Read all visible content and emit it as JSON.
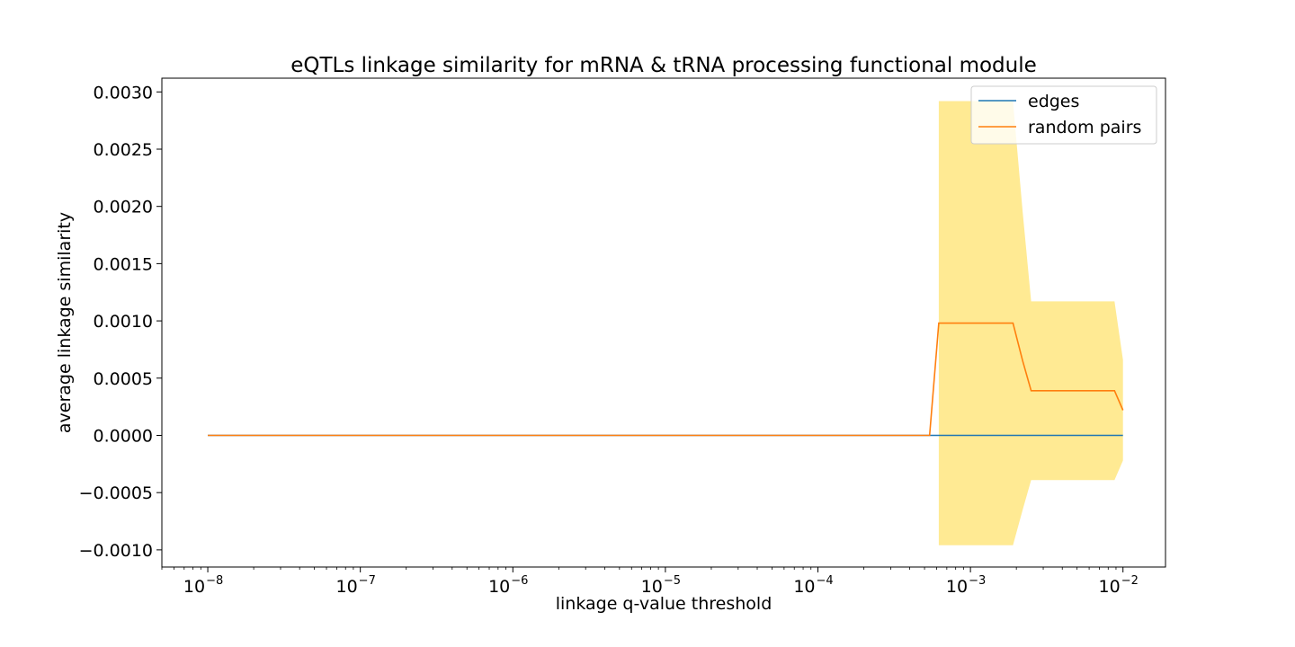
{
  "chart_data": {
    "type": "line",
    "title": "eQTLs linkage similarity for mRNA & tRNA processing functional module",
    "xlabel": "linkage q-value threshold",
    "ylabel": "average linkage similarity",
    "xscale": "log",
    "xlim": [
      5e-09,
      0.019
    ],
    "ylim": [
      -0.00115,
      0.00312
    ],
    "xtick_exponents": [
      -8,
      -7,
      -6,
      -5,
      -4,
      -3,
      -2
    ],
    "yticks": [
      -0.001,
      -0.0005,
      0.0,
      0.0005,
      0.001,
      0.0015,
      0.002,
      0.0025,
      0.003
    ],
    "ytick_labels": [
      "−0.0010",
      "−0.0005",
      "0.0000",
      "0.0005",
      "0.0010",
      "0.0015",
      "0.0020",
      "0.0025",
      "0.0030"
    ],
    "grid": false,
    "legend_position": "top-right",
    "series": [
      {
        "name": "edges",
        "color": "#1f77b4",
        "x": [
          1e-08,
          0.0005,
          0.01
        ],
        "y": [
          0.0,
          0.0,
          0.0
        ]
      },
      {
        "name": "random pairs",
        "color": "#ff7f0e",
        "x": [
          1e-08,
          0.00054,
          0.00062,
          0.0019,
          0.0022,
          0.0025,
          0.0088,
          0.01
        ],
        "y": [
          0.0,
          0.0,
          0.00098,
          0.00098,
          0.00065,
          0.00039,
          0.00039,
          0.00022
        ],
        "band": {
          "color": "#ffe680",
          "x": [
            0.00062,
            0.0019,
            0.0022,
            0.0025,
            0.0088,
            0.01
          ],
          "upper": [
            0.00292,
            0.00292,
            0.00195,
            0.00117,
            0.00117,
            0.00066
          ],
          "lower": [
            -0.00096,
            -0.00096,
            -0.00065,
            -0.00039,
            -0.00039,
            -0.00022
          ]
        }
      }
    ]
  }
}
